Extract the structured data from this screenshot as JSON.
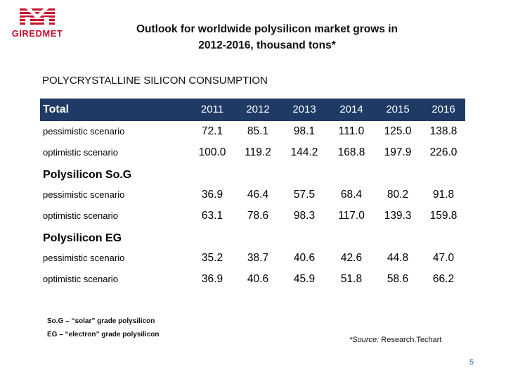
{
  "logo": {
    "text": "GIREDMET",
    "color": "#c8102e"
  },
  "title_line1": "Outlook for worldwide polysilicon market grows in",
  "title_line2": "2012-2016, thousand tons*",
  "section_heading": "POLYCRYSTALLINE SILICON CONSUMPTION",
  "table": {
    "header_label": "Total",
    "years": [
      "2011",
      "2012",
      "2013",
      "2014",
      "2015",
      "2016"
    ],
    "total_rows": [
      {
        "label": "pessimistic scenario",
        "values": [
          "72.1",
          "85.1",
          "98.1",
          "111.0",
          "125.0",
          "138.8"
        ]
      },
      {
        "label": "optimistic scenario",
        "values": [
          "100.0",
          "119.2",
          "144.2",
          "168.8",
          "197.9",
          "226.0"
        ]
      }
    ],
    "sog_title": "Polysilicon So.G",
    "sog_rows": [
      {
        "label": "pessimistic scenario",
        "values": [
          "36.9",
          "46.4",
          "57.5",
          "68.4",
          "80.2",
          "91.8"
        ]
      },
      {
        "label": "optimistic scenario",
        "values": [
          "63.1",
          "78.6",
          "98.3",
          "117.0",
          "139.3",
          "159.8"
        ]
      }
    ],
    "eg_title": "Polysilicon EG",
    "eg_rows": [
      {
        "label": "pessimistic scenario",
        "values": [
          "35.2",
          "38.7",
          "40.6",
          "42.6",
          "44.8",
          "47.0"
        ]
      },
      {
        "label": "optimistic scenario",
        "values": [
          "36.9",
          "40.6",
          "45.9",
          "51.8",
          "58.6",
          "66.2"
        ]
      }
    ],
    "header_color": "#1f3a64"
  },
  "footnotes": {
    "sog": "So.G – “solar” grade polysilicon",
    "eg": "EG – “electron” grade polysilicon"
  },
  "source": {
    "prefix": "*Source:",
    "text": " Research.Techart"
  },
  "page_number": "5"
}
